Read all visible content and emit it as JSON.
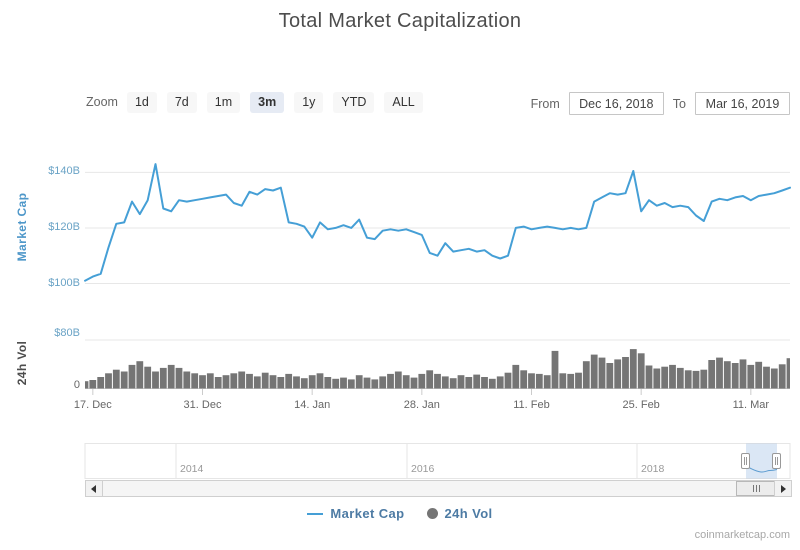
{
  "title": "Total Market Capitalization",
  "toolbar": {
    "zoom_label": "Zoom",
    "zoom_buttons": [
      "1d",
      "7d",
      "1m",
      "3m",
      "1y",
      "YTD",
      "ALL"
    ],
    "selected_zoom": "3m",
    "from_label": "From",
    "from_value": "Dec 16, 2018",
    "to_label": "To",
    "to_value": "Mar 16, 2019"
  },
  "colors": {
    "line": "#459fd6",
    "volume": "#757575",
    "gridline": "#e7e7e7",
    "axis_line": "#cccccc",
    "tick": "#cccccc",
    "selected_button_bg": "#e6ebf4",
    "navigator_mask": "rgba(91,146,211,0.22)",
    "axis_label_blue": "#6aa3c6",
    "legend_text": "#4d7ba4"
  },
  "chart_data": {
    "type": "line",
    "title": "Total Market Capitalization",
    "interval": "daily",
    "x_start": "Dec 16, 2018",
    "x_end": "Mar 16, 2019",
    "x_tick_labels": [
      "17. Dec",
      "31. Dec",
      "14. Jan",
      "28. Jan",
      "11. Feb",
      "25. Feb",
      "11. Mar"
    ],
    "x_tick_days": [
      1,
      15,
      29,
      43,
      57,
      71,
      85
    ],
    "grid": true,
    "legend_position": "bottom-center",
    "series": [
      {
        "name": "Market Cap",
        "type": "line",
        "color": "#459fd6",
        "unit": "USD billions",
        "values": [
          101,
          102.5,
          103.5,
          113,
          121.5,
          122,
          129.5,
          125,
          130,
          143,
          127,
          126,
          130,
          129.5,
          130,
          130.5,
          131,
          131.5,
          132,
          129,
          128,
          133,
          132,
          134,
          133.5,
          134.5,
          122,
          121.5,
          120.5,
          116.5,
          122,
          119.5,
          120,
          121,
          120,
          123,
          116.5,
          116,
          119,
          119.5,
          119,
          119.5,
          118.5,
          117.5,
          111,
          110,
          114.5,
          111.5,
          112,
          112.5,
          111.5,
          112,
          110,
          109,
          110,
          120,
          120.5,
          119.5,
          120,
          120.5,
          120,
          119.5,
          120,
          119.5,
          120,
          129.5,
          131,
          132.5,
          132,
          132.5,
          140.5,
          126,
          130,
          128,
          129,
          127.5,
          128,
          127.5,
          124.5,
          122.5,
          129.5,
          130.5,
          130,
          131,
          131.5,
          130,
          131.5,
          132,
          132.5,
          133.5,
          134.5
        ]
      },
      {
        "name": "24h Vol",
        "type": "column",
        "color": "#757575",
        "unit": "USD billions",
        "values": [
          12,
          14,
          19,
          25,
          31,
          28,
          39,
          45,
          36,
          28,
          34,
          39,
          34,
          28,
          25,
          22,
          25,
          19,
          22,
          25,
          28,
          24,
          20,
          26,
          22,
          19,
          24,
          20,
          17,
          22,
          25,
          19,
          16,
          18,
          15,
          22,
          18,
          15,
          20,
          24,
          28,
          22,
          18,
          24,
          30,
          24,
          20,
          17,
          22,
          19,
          23,
          19,
          16,
          20,
          26,
          39,
          30,
          25,
          24,
          22,
          62,
          25,
          24,
          26,
          45,
          56,
          51,
          42,
          48,
          52,
          65,
          58,
          38,
          33,
          36,
          39,
          34,
          30,
          29,
          31,
          47,
          51,
          45,
          42,
          48,
          39,
          44,
          36,
          33,
          40,
          50
        ]
      }
    ],
    "axes": {
      "market_cap": {
        "title": "Market Cap",
        "ticks": [
          {
            "label": "$100B",
            "value": 100
          },
          {
            "label": "$120B",
            "value": 120
          },
          {
            "label": "$140B",
            "value": 140
          }
        ],
        "range": [
          95,
          150
        ]
      },
      "volume": {
        "title": "24h Vol",
        "ticks": [
          {
            "label": "0",
            "value": 0
          },
          {
            "label": "$80B",
            "value": 80
          }
        ],
        "range": [
          0,
          80
        ]
      }
    },
    "navigator": {
      "year_labels": [
        "2014",
        "2016",
        "2018"
      ],
      "selected_range": [
        "Dec 16, 2018",
        "Mar 16, 2019"
      ]
    },
    "legend": [
      {
        "label": "Market Cap",
        "symbol": "line"
      },
      {
        "label": "24h Vol",
        "symbol": "circle"
      }
    ]
  },
  "footer": {
    "watermark": "coinmarketcap.com"
  }
}
